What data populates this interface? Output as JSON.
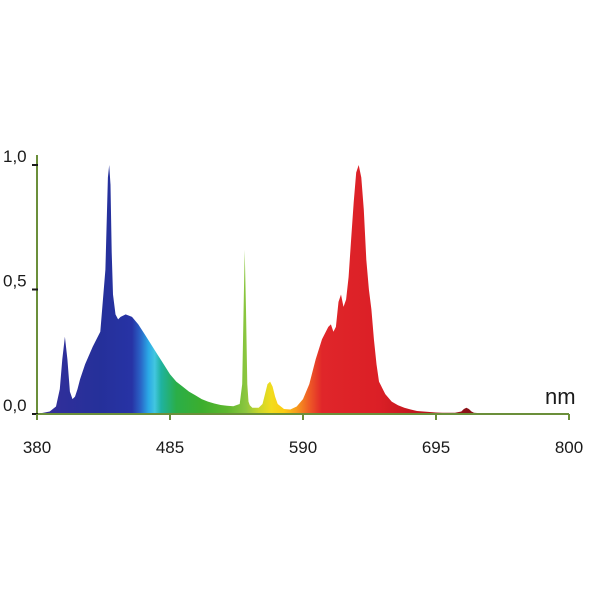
{
  "chart_data": {
    "type": "area",
    "title": "",
    "xlabel": "nm",
    "ylabel": "",
    "xlim": [
      380,
      800
    ],
    "ylim": [
      0,
      1.0
    ],
    "x_ticks": [
      380,
      485,
      590,
      695,
      800
    ],
    "x_tick_labels": [
      "380",
      "485",
      "590",
      "695",
      "800"
    ],
    "y_ticks": [
      0,
      0.5,
      1.0
    ],
    "y_tick_labels": [
      "0,0",
      "0,5",
      "1,0"
    ],
    "grid": false,
    "legend": "none",
    "axis_color": "#6b8f3a",
    "series": [
      {
        "x": [
          380,
          390,
          395,
          398,
          400,
          402,
          404,
          406,
          408,
          410,
          412,
          414,
          418,
          424,
          430,
          434,
          436,
          437,
          438,
          439,
          440,
          442,
          444,
          446,
          450,
          455,
          460,
          465,
          470,
          475,
          480,
          485,
          490,
          495,
          500,
          505,
          510,
          515,
          520,
          525,
          530,
          535,
          540,
          542,
          543,
          544,
          545,
          546,
          547,
          548,
          550,
          555,
          558,
          560,
          562,
          564,
          566,
          568,
          570,
          575,
          580,
          585,
          590,
          595,
          600,
          605,
          610,
          612,
          614,
          616,
          618,
          620,
          622,
          624,
          626,
          628,
          630,
          632,
          634,
          636,
          638,
          640,
          642,
          644,
          646,
          648,
          650,
          655,
          660,
          665,
          670,
          675,
          680,
          685,
          690,
          695,
          700,
          705,
          710,
          715,
          717,
          719,
          721,
          723,
          725,
          730,
          740,
          760,
          780,
          800
        ],
        "y": [
          0.0,
          0.01,
          0.03,
          0.1,
          0.22,
          0.31,
          0.22,
          0.09,
          0.06,
          0.07,
          0.1,
          0.14,
          0.2,
          0.27,
          0.33,
          0.58,
          0.95,
          1.0,
          0.92,
          0.65,
          0.48,
          0.4,
          0.38,
          0.39,
          0.4,
          0.39,
          0.36,
          0.32,
          0.28,
          0.24,
          0.2,
          0.16,
          0.13,
          0.11,
          0.09,
          0.075,
          0.06,
          0.05,
          0.042,
          0.036,
          0.033,
          0.031,
          0.04,
          0.12,
          0.4,
          0.66,
          0.42,
          0.12,
          0.05,
          0.035,
          0.025,
          0.025,
          0.04,
          0.08,
          0.12,
          0.13,
          0.11,
          0.07,
          0.04,
          0.02,
          0.018,
          0.03,
          0.06,
          0.12,
          0.22,
          0.3,
          0.35,
          0.36,
          0.33,
          0.35,
          0.45,
          0.48,
          0.43,
          0.46,
          0.55,
          0.7,
          0.85,
          0.97,
          1.0,
          0.95,
          0.82,
          0.62,
          0.5,
          0.42,
          0.3,
          0.2,
          0.13,
          0.08,
          0.05,
          0.035,
          0.025,
          0.018,
          0.012,
          0.01,
          0.008,
          0.006,
          0.005,
          0.005,
          0.005,
          0.01,
          0.02,
          0.025,
          0.02,
          0.01,
          0.005,
          0.003,
          0.002,
          0.001,
          0.0,
          0.0
        ]
      }
    ]
  }
}
